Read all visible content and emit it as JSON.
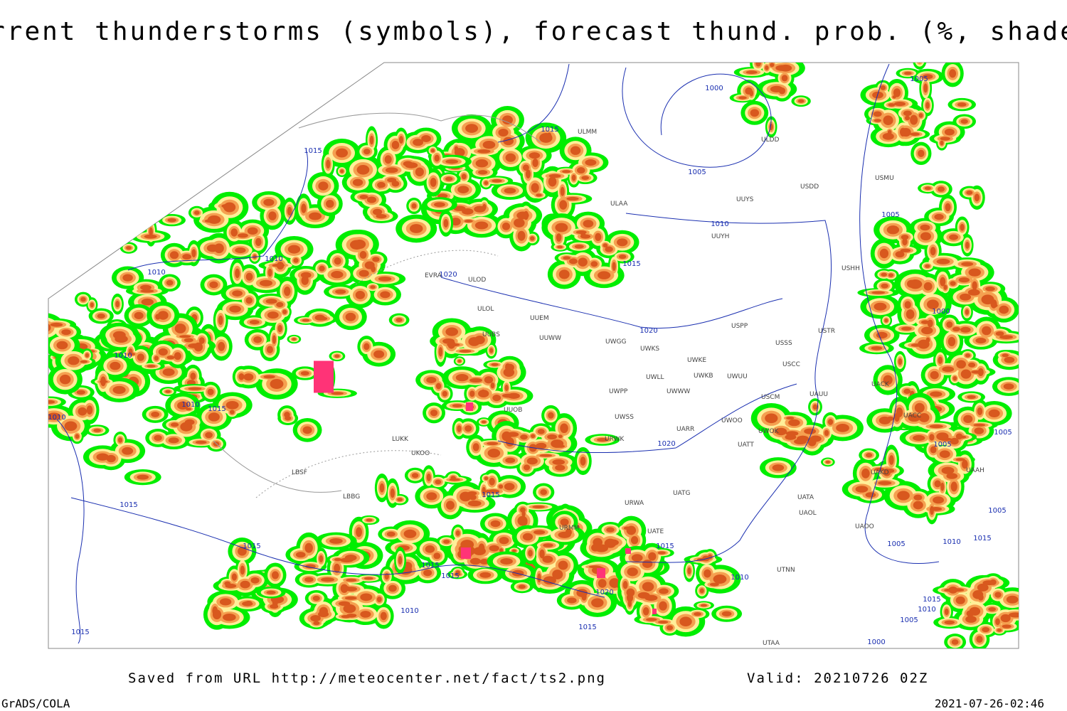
{
  "header": {
    "title": "Current thunderstorms (symbols), forecast thund. prob. (%, shaded)"
  },
  "map": {
    "stations": [
      "ULMM",
      "ULDD",
      "USDD",
      "USMU",
      "UUYS",
      "ULAA",
      "UUYH",
      "USHH",
      "ULOD",
      "EVRA",
      "ULOL",
      "UUEM",
      "UUWW",
      "UUBS",
      "UWGG",
      "UWKS",
      "USPP",
      "USSS",
      "USTR",
      "UWKE",
      "UWKB",
      "UWUU",
      "USCC",
      "UWLL",
      "UWWW",
      "UWPP",
      "USCM",
      "UAUU",
      "UACK",
      "UACC",
      "UWSS",
      "UARR",
      "UWOO",
      "UWOK",
      "URWK",
      "UATT",
      "LUKK",
      "UKOO",
      "UUOB",
      "LBSF",
      "LBBG",
      "UATG",
      "URWA",
      "UATA",
      "UAOL",
      "UAKD",
      "UAAH",
      "UAOO",
      "URMM",
      "UATE",
      "UTNN",
      "UTAA"
    ],
    "isobars": [
      "1000",
      "1005",
      "1015",
      "1015",
      "1010",
      "1015",
      "1020",
      "1010",
      "1010",
      "1010",
      "1010",
      "1015",
      "1010",
      "1020",
      "1020",
      "1015",
      "1015",
      "1015",
      "1015",
      "1020",
      "1015",
      "1010",
      "1010",
      "1015",
      "1015",
      "1005",
      "1005",
      "1000",
      "1005",
      "1005",
      "1005",
      "1005",
      "1010",
      "1015",
      "1015",
      "1000",
      "1005",
      "1010",
      "1015"
    ]
  },
  "footer": {
    "source": "Saved from URL http://meteocenter.net/fact/ts2.png",
    "valid": "Valid: 20210726 02Z",
    "software": "GrADS/COLA",
    "timestamp": "2021-07-26-02:46"
  }
}
